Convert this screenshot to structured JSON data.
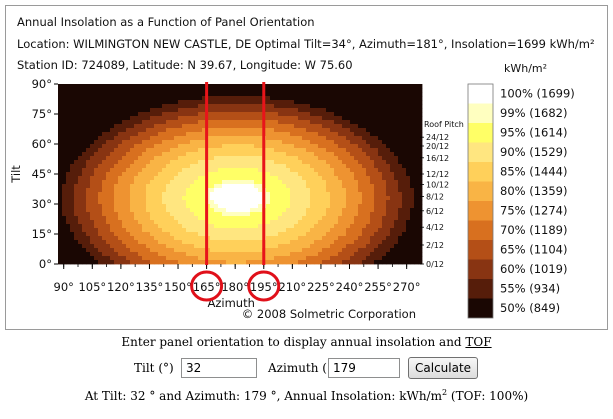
{
  "chart_data": {
    "type": "heatmap",
    "title": "Annual Insolation as a Function of Panel Orientation",
    "location_line": "Location: WILMINGTON NEW CASTLE, DE   Optimal Tilt=34°, Azimuth=181°, Insolation=1699 kWh/m²",
    "station_line": "Station ID: 724089, Latitude: N 39.67, Longitude: W 75.60",
    "xlabel": "Azimuth",
    "ylabel": "Tilt",
    "x_ticks": [
      90,
      105,
      120,
      135,
      150,
      165,
      180,
      195,
      210,
      225,
      240,
      255,
      270
    ],
    "x_tick_labels": [
      "90°",
      "105°",
      "120°",
      "135°",
      "150°",
      "165°",
      "180°",
      "195°",
      "210°",
      "225°",
      "240°",
      "255°",
      "270°"
    ],
    "y_ticks": [
      0,
      15,
      30,
      45,
      60,
      75,
      90
    ],
    "y_tick_labels": [
      "0°",
      "15°",
      "30°",
      "45°",
      "60°",
      "75°",
      "90°"
    ],
    "xlim": [
      87,
      277
    ],
    "ylim": [
      0,
      90
    ],
    "optimum": {
      "tilt": 34,
      "azimuth": 181,
      "insolation": 1699
    },
    "roof_pitch_title": "Roof Pitch",
    "roof_pitch_labels": [
      {
        "label": "24/12",
        "tilt": 63.4
      },
      {
        "label": "20/12",
        "tilt": 59.0
      },
      {
        "label": "16/12",
        "tilt": 53.1
      },
      {
        "label": "12/12",
        "tilt": 45.0
      },
      {
        "label": "10/12",
        "tilt": 39.8
      },
      {
        "label": "8/12",
        "tilt": 33.7
      },
      {
        "label": "6/12",
        "tilt": 26.6
      },
      {
        "label": "4/12",
        "tilt": 18.4
      },
      {
        "label": "2/12",
        "tilt": 9.5
      },
      {
        "label": "0/12",
        "tilt": 0
      }
    ],
    "marker_lines_azimuth": [
      165,
      195
    ],
    "circled_ticks": [
      165,
      195
    ],
    "legend_title": "kWh/m²",
    "legend": [
      {
        "label": "100% (1699)",
        "percent": 100,
        "color": "#ffffff"
      },
      {
        "label": "99% (1682)",
        "percent": 99,
        "color": "#ffffc0"
      },
      {
        "label": "95% (1614)",
        "percent": 95,
        "color": "#ffff66"
      },
      {
        "label": "90% (1529)",
        "percent": 90,
        "color": "#ffe680"
      },
      {
        "label": "85% (1444)",
        "percent": 85,
        "color": "#ffd05a"
      },
      {
        "label": "80% (1359)",
        "percent": 80,
        "color": "#f9b445"
      },
      {
        "label": "75% (1274)",
        "percent": 75,
        "color": "#ee9331"
      },
      {
        "label": "70% (1189)",
        "percent": 70,
        "color": "#d8701f"
      },
      {
        "label": "65% (1104)",
        "percent": 65,
        "color": "#b44f17"
      },
      {
        "label": "60% (1019)",
        "percent": 60,
        "color": "#883412"
      },
      {
        "label": "55% (934)",
        "percent": 55,
        "color": "#561d0a"
      },
      {
        "label": "50% (849)",
        "percent": 50,
        "color": "#1a0703"
      }
    ],
    "copyright": "© 2008 Solmetric Corporation",
    "grid": false
  },
  "colors": {
    "marker_line": "#e8141a",
    "circle": "#e0101a"
  },
  "form": {
    "prompt_before": "Enter panel orientation to display annual insolation and ",
    "prompt_link": "TOF",
    "tilt_label": "Tilt (°)",
    "tilt_value": "32",
    "azimuth_label": "Azimuth (°)",
    "azimuth_value": "179",
    "calculate_label": "Calculate",
    "result_text": "At Tilt: 32 ° and Azimuth: 179 °, Annual Insolation: kWh/m",
    "result_sup": "2",
    "result_tail": " (TOF: 100%)"
  }
}
